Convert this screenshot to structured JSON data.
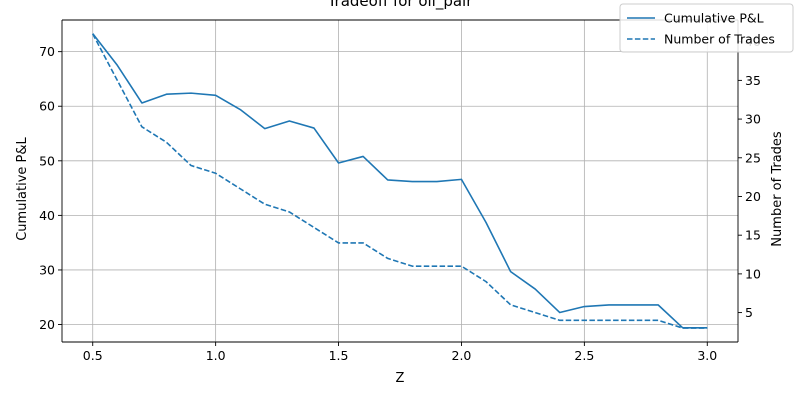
{
  "chart_data": {
    "type": "line",
    "title": "Tradeoff for oil_pair",
    "xlabel": "Z",
    "ylabel": "Cumulative P&L",
    "y2label": "Number of Trades",
    "xlim": [
      0.375,
      3.125
    ],
    "ylim": [
      16.8,
      75.8
    ],
    "y2lim": [
      1.2,
      42.8
    ],
    "x_ticks": [
      0.5,
      1.0,
      1.5,
      2.0,
      2.5,
      3.0
    ],
    "x_tick_labels": [
      "0.5",
      "1.0",
      "1.5",
      "2.0",
      "2.5",
      "3.0"
    ],
    "y_ticks": [
      20,
      30,
      40,
      50,
      60,
      70
    ],
    "y_tick_labels": [
      "20",
      "30",
      "40",
      "50",
      "60",
      "70"
    ],
    "y2_ticks": [
      5,
      10,
      15,
      20,
      25,
      30,
      35,
      40
    ],
    "y2_tick_labels": [
      "5",
      "10",
      "15",
      "20",
      "25",
      "30",
      "35",
      "40"
    ],
    "grid": true,
    "legend_position": "top-right",
    "color": "#1f77b4",
    "x": [
      0.5,
      0.6,
      0.7,
      0.8,
      0.9,
      1.0,
      1.1,
      1.2,
      1.3,
      1.4,
      1.5,
      1.6,
      1.7,
      1.8,
      1.9,
      2.0,
      2.1,
      2.2,
      2.3,
      2.4,
      2.5,
      2.6,
      2.7,
      2.8,
      2.9,
      3.0
    ],
    "series": [
      {
        "name": "Cumulative P&L",
        "axis": "left",
        "style": "solid",
        "values": [
          73.3,
          67.5,
          60.6,
          62.2,
          62.4,
          62.0,
          59.4,
          55.9,
          57.3,
          56.0,
          49.6,
          50.8,
          46.5,
          46.2,
          46.2,
          46.6,
          38.7,
          29.7,
          26.5,
          22.2,
          23.3,
          23.6,
          23.6,
          23.6,
          19.4,
          19.4
        ]
      },
      {
        "name": "Number of Trades",
        "axis": "right",
        "style": "dashed",
        "values": [
          41,
          35,
          29,
          27,
          24,
          23,
          21,
          19,
          18,
          16,
          14,
          14,
          12,
          11,
          11,
          11,
          9,
          6,
          5,
          4,
          4,
          4,
          4,
          4,
          3,
          3
        ]
      }
    ]
  }
}
